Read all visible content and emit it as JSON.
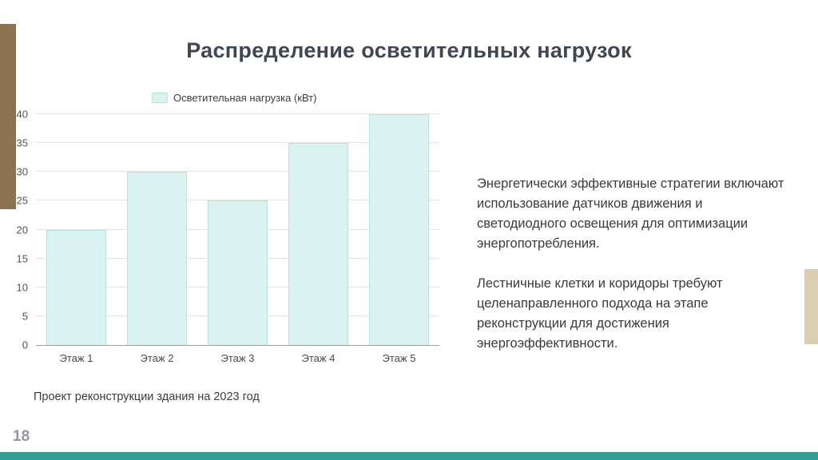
{
  "slide": {
    "title": "Распределение осветительных нагрузок"
  },
  "chart_data": {
    "type": "bar",
    "categories": [
      "Этаж 1",
      "Этаж 2",
      "Этаж 3",
      "Этаж 4",
      "Этаж 5"
    ],
    "values": [
      20,
      30,
      25,
      35,
      40
    ],
    "legend": "Осветительная нагрузка (кВт)",
    "title": "",
    "xlabel": "",
    "ylabel": "",
    "ylim": [
      0,
      40
    ],
    "yticks": [
      0,
      5,
      10,
      15,
      20,
      25,
      30,
      35,
      40
    ],
    "grid": true,
    "legend_position": "top",
    "bar_color": "#daf2f0",
    "bar_border_color": "#b9e2de"
  },
  "body": {
    "paragraph1": "Энергетически эффективные стратегии включают использование датчиков движения и светодиодного освещения для оптимизации энергопотребления.",
    "paragraph2": "Лестничные клетки и коридоры требуют целенаправленного подхода на этапе реконструкции для достижения энергоэффективности."
  },
  "footer": {
    "caption": "Проект реконструкции здания на 2023 год",
    "page_number": "18"
  },
  "colors": {
    "accent_left": "#8b7352",
    "accent_right": "#d9cdb4",
    "accent_bottom": "#2f9e94",
    "title": "#3f4750"
  }
}
